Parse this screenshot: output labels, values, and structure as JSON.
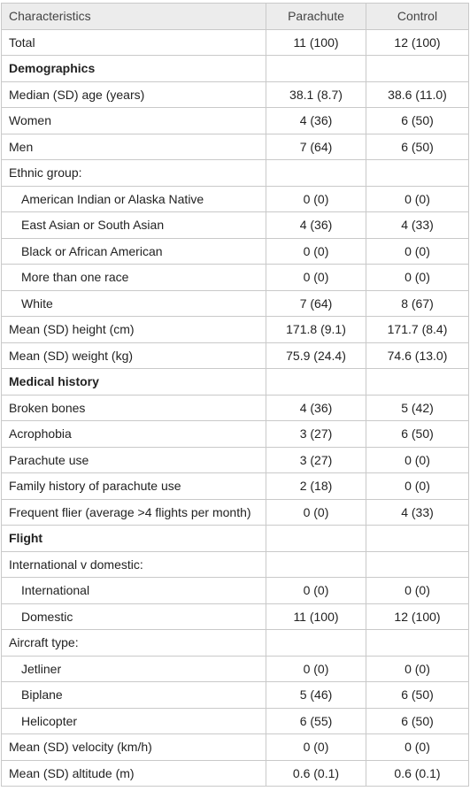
{
  "headers": [
    "Characteristics",
    "Parachute",
    "Control"
  ],
  "rows": [
    {
      "type": "data",
      "label": "Total",
      "parachute": "11 (100)",
      "control": "12 (100)"
    },
    {
      "type": "section",
      "label": "Demographics",
      "parachute": "",
      "control": ""
    },
    {
      "type": "data",
      "label": "Median (SD) age (years)",
      "parachute": "38.1 (8.7)",
      "control": "38.6 (11.0)"
    },
    {
      "type": "data",
      "label": "Women",
      "parachute": "4 (36)",
      "control": "6 (50)"
    },
    {
      "type": "data",
      "label": "Men",
      "parachute": "7 (64)",
      "control": "6 (50)"
    },
    {
      "type": "data",
      "label": "Ethnic group:",
      "parachute": "",
      "control": ""
    },
    {
      "type": "sub",
      "label": "American Indian or Alaska Native",
      "parachute": "0 (0)",
      "control": "0 (0)"
    },
    {
      "type": "sub",
      "label": "East Asian or South Asian",
      "parachute": "4 (36)",
      "control": "4 (33)"
    },
    {
      "type": "sub",
      "label": "Black or African American",
      "parachute": "0 (0)",
      "control": "0 (0)"
    },
    {
      "type": "sub",
      "label": "More than one race",
      "parachute": "0 (0)",
      "control": "0 (0)"
    },
    {
      "type": "sub",
      "label": "White",
      "parachute": "7 (64)",
      "control": "8 (67)"
    },
    {
      "type": "data",
      "label": "Mean (SD) height (cm)",
      "parachute": "171.8 (9.1)",
      "control": "171.7 (8.4)"
    },
    {
      "type": "data",
      "label": "Mean (SD) weight (kg)",
      "parachute": "75.9 (24.4)",
      "control": "74.6 (13.0)"
    },
    {
      "type": "section",
      "label": "Medical history",
      "parachute": "",
      "control": ""
    },
    {
      "type": "data",
      "label": "Broken bones",
      "parachute": "4 (36)",
      "control": "5 (42)"
    },
    {
      "type": "data",
      "label": "Acrophobia",
      "parachute": "3 (27)",
      "control": "6 (50)"
    },
    {
      "type": "data",
      "label": "Parachute use",
      "parachute": "3 (27)",
      "control": "0 (0)"
    },
    {
      "type": "data",
      "label": "Family history of parachute use",
      "parachute": "2 (18)",
      "control": "0 (0)"
    },
    {
      "type": "data",
      "label": "Frequent flier (average >4 flights per month)",
      "parachute": "0 (0)",
      "control": "4 (33)"
    },
    {
      "type": "section",
      "label": "Flight",
      "parachute": "",
      "control": ""
    },
    {
      "type": "data",
      "label": "International v domestic:",
      "parachute": "",
      "control": ""
    },
    {
      "type": "sub",
      "label": "International",
      "parachute": "0 (0)",
      "control": "0 (0)"
    },
    {
      "type": "sub",
      "label": "Domestic",
      "parachute": "11 (100)",
      "control": "12 (100)"
    },
    {
      "type": "data",
      "label": "Aircraft type:",
      "parachute": "",
      "control": ""
    },
    {
      "type": "sub",
      "label": "Jetliner",
      "parachute": "0 (0)",
      "control": "0 (0)"
    },
    {
      "type": "sub",
      "label": "Biplane",
      "parachute": "5 (46)",
      "control": "6 (50)"
    },
    {
      "type": "sub",
      "label": "Helicopter",
      "parachute": "6 (55)",
      "control": "6 (50)"
    },
    {
      "type": "data",
      "label": "Mean (SD) velocity (km/h)",
      "parachute": "0 (0)",
      "control": "0 (0)"
    },
    {
      "type": "data",
      "label": "Mean (SD) altitude (m)",
      "parachute": "0.6 (0.1)",
      "control": "0.6 (0.1)"
    }
  ]
}
